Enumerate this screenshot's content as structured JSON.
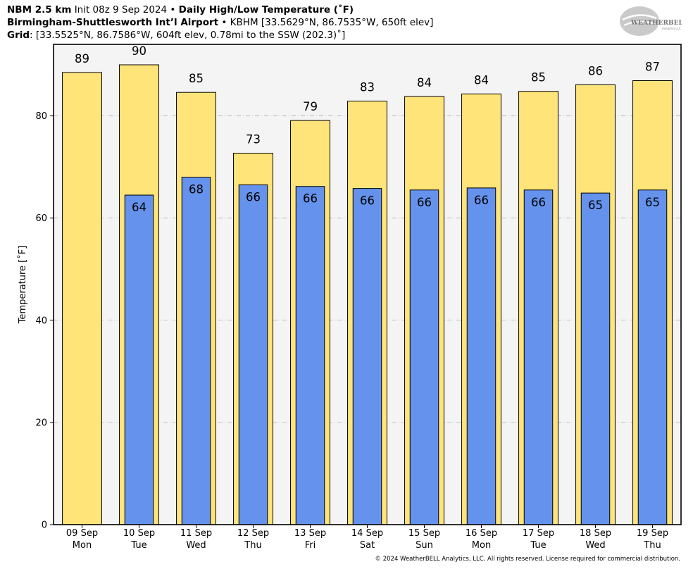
{
  "header": {
    "line1_bold": "NBM 2.5 km",
    "line1_init": "Init 08z 9 Sep 2024",
    "line1_sep": "•",
    "line1_title": "Daily High/Low Temperature (˚F)",
    "line2_bold": "Birmingham-Shuttlesworth Int’l Airport",
    "line2_sep": "•",
    "line2_rest": "KBHM [33.5629°N, 86.7535°W, 650ft elev]",
    "line3_bold": "Grid",
    "line3_rest": ": [33.5525°N, 86.7586°W, 604ft elev, 0.78mi to the SSW (202.3)˚]"
  },
  "logo": {
    "text_main": "WEATHERBELL",
    "text_sub": "Analytics LLC"
  },
  "copyright": "© 2024 WeatherBELL Analytics, LLC. All rights reserved. License required for commercial distribution.",
  "chart_data": {
    "type": "bar",
    "ylabel": "Temperature [˚F]",
    "xlabel": "",
    "ylim": [
      0,
      94
    ],
    "yticks": [
      0,
      20,
      40,
      60,
      80
    ],
    "grid": true,
    "categories": [
      {
        "date": "09 Sep",
        "day": "Mon"
      },
      {
        "date": "10 Sep",
        "day": "Tue"
      },
      {
        "date": "11 Sep",
        "day": "Wed"
      },
      {
        "date": "12 Sep",
        "day": "Thu"
      },
      {
        "date": "13 Sep",
        "day": "Fri"
      },
      {
        "date": "14 Sep",
        "day": "Sat"
      },
      {
        "date": "15 Sep",
        "day": "Sun"
      },
      {
        "date": "16 Sep",
        "day": "Mon"
      },
      {
        "date": "17 Sep",
        "day": "Tue"
      },
      {
        "date": "18 Sep",
        "day": "Wed"
      },
      {
        "date": "19 Sep",
        "day": "Thu"
      }
    ],
    "series": [
      {
        "key": "high",
        "color": "#ffe47a",
        "values": [
          88.5,
          90,
          84.6,
          72.7,
          79.1,
          82.9,
          83.8,
          84.3,
          84.8,
          86.1,
          86.9
        ],
        "labels": [
          "89",
          "90",
          "85",
          "73",
          "79",
          "83",
          "84",
          "84",
          "85",
          "86",
          "87"
        ]
      },
      {
        "key": "low",
        "color": "#6592ec",
        "values": [
          null,
          64.5,
          68,
          66.5,
          66.2,
          65.8,
          65.5,
          65.9,
          65.5,
          64.9,
          65.5
        ],
        "labels": [
          "",
          "64",
          "68",
          "66",
          "66",
          "66",
          "66",
          "66",
          "66",
          "65",
          "65"
        ]
      }
    ],
    "plot_background": "#f4f4f4"
  }
}
